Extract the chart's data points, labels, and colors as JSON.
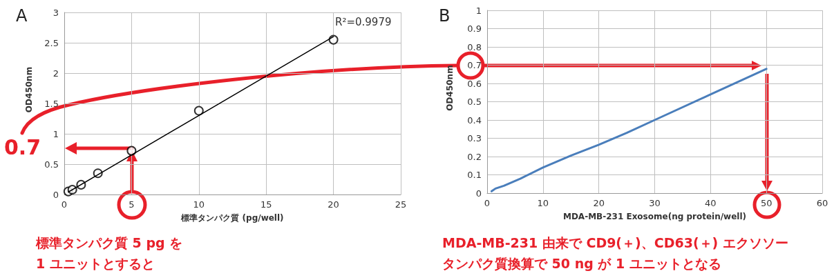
{
  "chart_data": [
    {
      "type": "scatter",
      "title": "A",
      "xlabel": "標準タンパク質 (pg/well)",
      "ylabel": "OD450nm",
      "xlim": [
        0,
        25
      ],
      "xticks": [
        0,
        5,
        10,
        15,
        20,
        25
      ],
      "ylim": [
        0,
        3
      ],
      "yticks": [
        0,
        0.5,
        1,
        1.5,
        2,
        2.5,
        3
      ],
      "grid": true,
      "marker": "circle",
      "series": [
        {
          "type": "scatter",
          "color": "#000000",
          "x": [
            0.3,
            0.6,
            1.25,
            2.5,
            5,
            10,
            20
          ],
          "values": [
            0.05,
            0.08,
            0.16,
            0.35,
            0.72,
            1.38,
            2.55
          ]
        },
        {
          "type": "line",
          "color": "#000000",
          "marker": "none",
          "x": [
            0.3,
            20
          ],
          "values": [
            0.04,
            2.6
          ]
        }
      ],
      "annotations": [
        "R²=0.9979",
        "0.7",
        "標準タンパク質 5 pg を",
        "1 ユニットとすると"
      ]
    },
    {
      "type": "line",
      "title": "B",
      "xlabel": "MDA-MB-231 Exosome(ng protein/well)",
      "ylabel": "OD450nm",
      "xlim": [
        0,
        60
      ],
      "xticks": [
        0,
        10,
        20,
        30,
        40,
        50,
        60
      ],
      "ylim": [
        0,
        1
      ],
      "yticks": [
        0,
        0.1,
        0.2,
        0.3,
        0.4,
        0.5,
        0.6,
        0.7,
        0.8,
        0.9,
        1
      ],
      "grid": true,
      "marker": "none",
      "series": [
        {
          "color": "#4a7ebb",
          "x": [
            0.8,
            1.5,
            3,
            6,
            10,
            15,
            20,
            25,
            30,
            40,
            50
          ],
          "values": [
            0.01,
            0.025,
            0.04,
            0.08,
            0.14,
            0.205,
            0.265,
            0.33,
            0.4,
            0.54,
            0.68
          ]
        }
      ],
      "annotations": [
        "MDA-MB-231 由来で CD9(＋)、CD63(＋) エクソソー",
        "タンパク質換算で 50 ng が 1 ユニットとなる"
      ]
    }
  ]
}
